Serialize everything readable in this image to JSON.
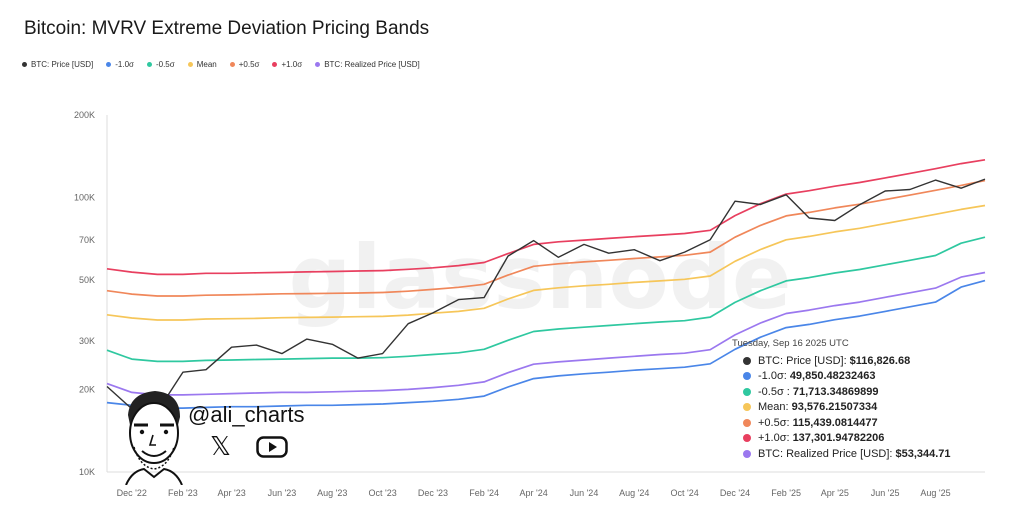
{
  "title": "Bitcoin: MVRV Extreme Deviation Pricing Bands",
  "legend": [
    {
      "label": "BTC: Price [USD]",
      "color": "#333333"
    },
    {
      "label": "-1.0σ",
      "color": "#4a86e8"
    },
    {
      "label": "-0.5σ",
      "color": "#2fc8a0"
    },
    {
      "label": "Mean",
      "color": "#f6c659"
    },
    {
      "label": "+0.5σ",
      "color": "#f0875a"
    },
    {
      "label": "+1.0σ",
      "color": "#e83f5f"
    },
    {
      "label": "BTC: Realized Price [USD]",
      "color": "#9b78ef"
    }
  ],
  "watermark": "glassnode",
  "social": {
    "handle": "@ali_charts",
    "x_icon": "x-logo-icon",
    "video_icon": "youtube-icon"
  },
  "tooltip": {
    "date": "Tuesday, Sep 16 2025 UTC",
    "rows": [
      {
        "label": "BTC: Price [USD]:",
        "value": "$116,826.68",
        "color": "#333333"
      },
      {
        "label": "-1.0σ:",
        "value": "49,850.48232463",
        "color": "#4a86e8"
      },
      {
        "label": "-0.5σ :",
        "value": "71,713.34869899",
        "color": "#2fc8a0"
      },
      {
        "label": "Mean:",
        "value": "93,576.21507334",
        "color": "#f6c659"
      },
      {
        "label": "+0.5σ:",
        "value": "115,439.0814477",
        "color": "#f0875a"
      },
      {
        "label": "+1.0σ:",
        "value": "137,301.94782206",
        "color": "#e83f5f"
      },
      {
        "label": "BTC: Realized Price [USD]:",
        "value": "$53,344.71",
        "color": "#9b78ef"
      }
    ]
  },
  "chart_data": {
    "type": "line",
    "title": "Bitcoin: MVRV Extreme Deviation Pricing Bands",
    "y_scale": "log",
    "ylim": [
      10000,
      200000
    ],
    "y_ticks": [
      {
        "label": "10K",
        "value": 10000
      },
      {
        "label": "20K",
        "value": 20000
      },
      {
        "label": "30K",
        "value": 30000
      },
      {
        "label": "50K",
        "value": 50000
      },
      {
        "label": "70K",
        "value": 70000
      },
      {
        "label": "100K",
        "value": 100000
      },
      {
        "label": "200K",
        "value": 200000
      }
    ],
    "xlim": [
      "2022-11-01",
      "2025-09-30"
    ],
    "x_ticks": [
      {
        "label": "Dec '22",
        "date": "2022-12-01"
      },
      {
        "label": "Feb '23",
        "date": "2023-02-01"
      },
      {
        "label": "Apr '23",
        "date": "2023-04-01"
      },
      {
        "label": "Jun '23",
        "date": "2023-06-01"
      },
      {
        "label": "Aug '23",
        "date": "2023-08-01"
      },
      {
        "label": "Oct '23",
        "date": "2023-10-01"
      },
      {
        "label": "Dec '23",
        "date": "2023-12-01"
      },
      {
        "label": "Feb '24",
        "date": "2024-02-01"
      },
      {
        "label": "Apr '24",
        "date": "2024-04-01"
      },
      {
        "label": "Jun '24",
        "date": "2024-06-01"
      },
      {
        "label": "Aug '24",
        "date": "2024-08-01"
      },
      {
        "label": "Oct '24",
        "date": "2024-10-01"
      },
      {
        "label": "Dec '24",
        "date": "2024-12-01"
      },
      {
        "label": "Feb '25",
        "date": "2025-02-01"
      },
      {
        "label": "Apr '25",
        "date": "2025-04-01"
      },
      {
        "label": "Jun '25",
        "date": "2025-06-01"
      },
      {
        "label": "Aug '25",
        "date": "2025-08-01"
      }
    ],
    "x_dates": [
      "2022-11-01",
      "2022-12-01",
      "2023-01-01",
      "2023-02-01",
      "2023-03-01",
      "2023-04-01",
      "2023-05-01",
      "2023-06-01",
      "2023-07-01",
      "2023-08-01",
      "2023-09-01",
      "2023-10-01",
      "2023-11-01",
      "2023-12-01",
      "2024-01-01",
      "2024-02-01",
      "2024-03-01",
      "2024-04-01",
      "2024-05-01",
      "2024-06-01",
      "2024-07-01",
      "2024-08-01",
      "2024-09-01",
      "2024-10-01",
      "2024-11-01",
      "2024-12-01",
      "2025-01-01",
      "2025-02-01",
      "2025-03-01",
      "2025-04-01",
      "2025-05-01",
      "2025-06-01",
      "2025-07-01",
      "2025-08-01",
      "2025-09-01",
      "2025-09-30"
    ],
    "series": [
      {
        "name": "+1.0σ",
        "color": "#e83f5f",
        "values": [
          55000,
          53500,
          52500,
          52500,
          53000,
          53000,
          53200,
          53400,
          53600,
          53800,
          54000,
          54200,
          54800,
          55500,
          56500,
          58000,
          62500,
          67500,
          69000,
          70000,
          71000,
          72000,
          73000,
          74000,
          76000,
          86000,
          95000,
          103000,
          106000,
          110000,
          113500,
          118000,
          122500,
          127500,
          133000,
          137300
        ]
      },
      {
        "name": "+0.5σ",
        "color": "#f0875a",
        "values": [
          45800,
          44500,
          43800,
          43800,
          44100,
          44200,
          44400,
          44600,
          44700,
          44800,
          44900,
          45100,
          45600,
          46300,
          47100,
          48300,
          52200,
          56200,
          57400,
          58300,
          59100,
          60000,
          60800,
          61600,
          63300,
          71700,
          79200,
          85800,
          88300,
          91700,
          94600,
          98300,
          102100,
          106300,
          110800,
          115400
        ]
      },
      {
        "name": "Mean",
        "color": "#f6c659",
        "values": [
          37400,
          36400,
          35800,
          35800,
          36100,
          36200,
          36300,
          36500,
          36600,
          36700,
          36800,
          36900,
          37300,
          37900,
          38500,
          39500,
          42700,
          45900,
          46900,
          47700,
          48300,
          49100,
          49700,
          50400,
          51800,
          58600,
          64700,
          70200,
          72200,
          75000,
          77300,
          80400,
          83500,
          86900,
          90600,
          93600
        ]
      },
      {
        "name": "-0.5σ",
        "color": "#2fc8a0",
        "values": [
          27800,
          25800,
          25300,
          25300,
          25500,
          25600,
          25700,
          25800,
          25900,
          26000,
          26000,
          26100,
          26400,
          26800,
          27200,
          28000,
          30200,
          32500,
          33200,
          33700,
          34200,
          34700,
          35200,
          35600,
          36700,
          41500,
          45800,
          49700,
          51100,
          53100,
          54700,
          56900,
          59100,
          61500,
          68200,
          71700
        ]
      },
      {
        "name": "-1.0σ",
        "color": "#4a86e8",
        "values": [
          17900,
          17500,
          17100,
          17100,
          17200,
          17300,
          17300,
          17400,
          17500,
          17500,
          17600,
          17700,
          17900,
          18100,
          18400,
          18900,
          20400,
          21900,
          22400,
          22800,
          23100,
          23500,
          23800,
          24100,
          24800,
          28000,
          31000,
          33600,
          34500,
          35900,
          37000,
          38500,
          40000,
          41600,
          47200,
          49850
        ]
      },
      {
        "name": "BTC: Realized Price [USD]",
        "color": "#9b78ef",
        "values": [
          21000,
          19500,
          19100,
          19100,
          19200,
          19300,
          19400,
          19500,
          19500,
          19600,
          19700,
          19800,
          20000,
          20300,
          20700,
          21300,
          23000,
          24700,
          25200,
          25600,
          26000,
          26400,
          26800,
          27100,
          27900,
          31600,
          34900,
          37800,
          38900,
          40400,
          41600,
          43300,
          45000,
          46800,
          51300,
          53345
        ]
      },
      {
        "name": "BTC: Price [USD]",
        "color": "#333333",
        "values": [
          20500,
          17000,
          16600,
          23100,
          23600,
          28500,
          29000,
          27000,
          30500,
          29200,
          26000,
          27000,
          34700,
          38000,
          42500,
          43200,
          61200,
          69700,
          60600,
          67500,
          62700,
          64600,
          58900,
          63300,
          70200,
          97000,
          94400,
          102400,
          84300,
          82500,
          94200,
          105700,
          107000,
          115800,
          108200,
          116827
        ]
      }
    ]
  }
}
